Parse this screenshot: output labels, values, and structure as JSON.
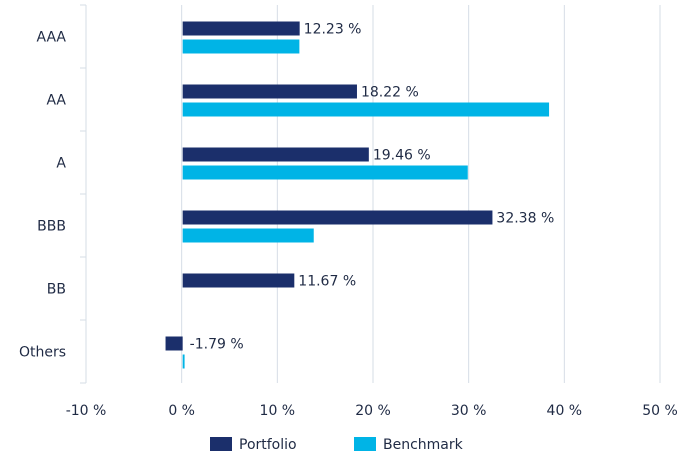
{
  "chart_data": {
    "type": "bar",
    "orientation": "horizontal",
    "categories": [
      "AAA",
      "AA",
      "A",
      "BBB",
      "BB",
      "Others"
    ],
    "series": [
      {
        "name": "Portfolio",
        "values": [
          12.23,
          18.22,
          19.46,
          32.38,
          11.67,
          -1.79
        ],
        "color": "#1b2f6b"
      },
      {
        "name": "Benchmark",
        "values": [
          12.2,
          38.3,
          29.8,
          13.7,
          0,
          0.2
        ],
        "color": "#00b4e6"
      }
    ],
    "data_labels": [
      "12.23 %",
      "18.22 %",
      "19.46 %",
      "32.38 %",
      "11.67 %",
      "-1.79 %"
    ],
    "xlim": [
      -10,
      50
    ],
    "x_ticks": [
      -10,
      0,
      10,
      20,
      30,
      40,
      50
    ],
    "x_tick_labels": [
      "-10 %",
      "0 %",
      "10 %",
      "20 %",
      "30 %",
      "40 %",
      "50 %"
    ],
    "grid": "vertical",
    "legend_position": "bottom-center"
  }
}
